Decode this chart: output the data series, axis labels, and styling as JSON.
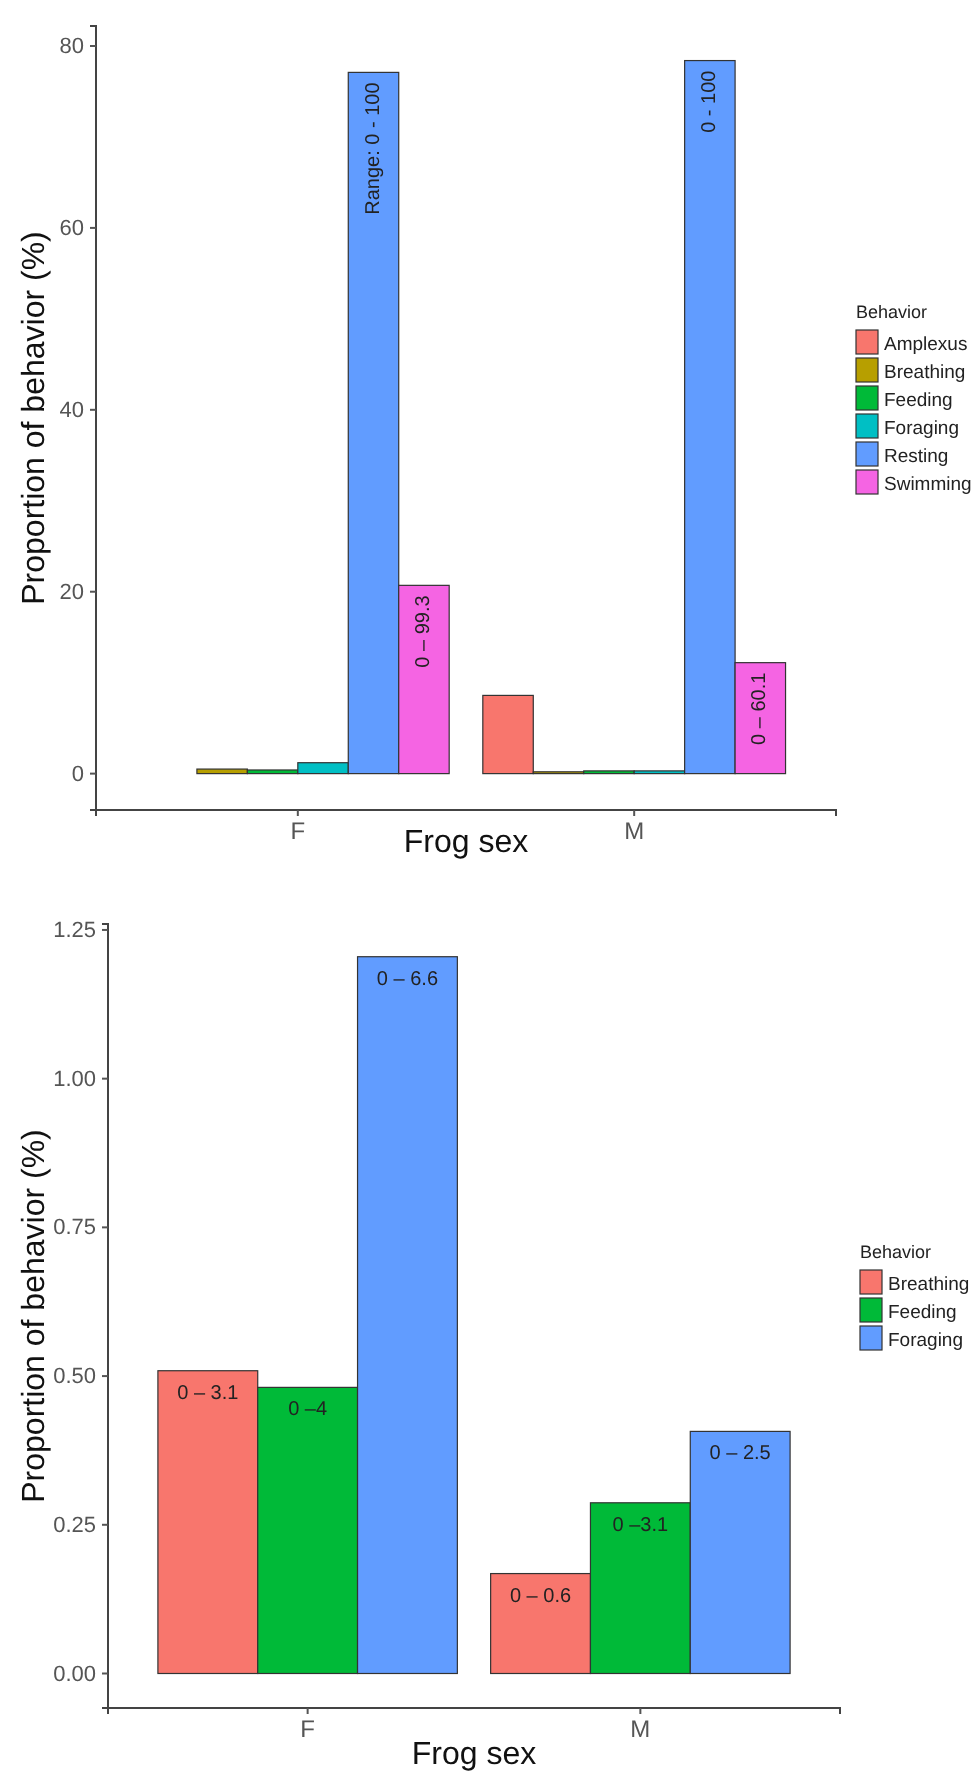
{
  "chart_data": [
    {
      "type": "bar",
      "xlabel": "Frog sex",
      "ylabel": "Proportion of behavior (%)",
      "legend_title": "Behavior",
      "legend": "right",
      "annotations": [
        "Range: 0 - 100",
        "0 – 99.3",
        "0 - 100",
        "0 – 60.1"
      ],
      "categories": [
        "F",
        "M"
      ],
      "ylim": [
        -4,
        82.2
      ],
      "yticks": [
        0,
        20,
        40,
        60,
        80
      ],
      "series": [
        {
          "name": "Amplexus",
          "color": "#f8766d",
          "values": [
            0,
            8.6
          ]
        },
        {
          "name": "Breathing",
          "color": "#b79f00",
          "values": [
            0.5,
            0.2
          ]
        },
        {
          "name": "Feeding",
          "color": "#00ba38",
          "values": [
            0.4,
            0.3
          ]
        },
        {
          "name": "Foraging",
          "color": "#00bfc4",
          "values": [
            1.2,
            0.3
          ]
        },
        {
          "name": "Resting",
          "color": "#619cff",
          "values": [
            77.1,
            78.4
          ]
        },
        {
          "name": "Swimming",
          "color": "#f564e3",
          "values": [
            20.7,
            12.2
          ]
        }
      ]
    },
    {
      "type": "bar",
      "xlabel": "Frog sex",
      "ylabel": "Proportion of behavior (%)",
      "legend_title": "Behavior",
      "legend": "right",
      "annotations": [
        "0 – 3.1",
        "0 –4",
        "0 – 6.6",
        "0 – 0.6",
        "0 –3.1",
        "0 – 2.5"
      ],
      "categories": [
        "F",
        "M"
      ],
      "ylim": [
        -0.058,
        1.26
      ],
      "yticks": [
        {
          "value": 0,
          "label": "0.00"
        },
        {
          "value": 0.25,
          "label": "0.25"
        },
        {
          "value": 0.5,
          "label": "0.50"
        },
        {
          "value": 0.75,
          "label": "0.75"
        },
        {
          "value": 1,
          "label": "1.00"
        },
        {
          "value": 1.25,
          "label": "1.25"
        }
      ],
      "series": [
        {
          "name": "Breathing",
          "color": "#f8766d",
          "values": [
            0.509,
            0.168
          ]
        },
        {
          "name": "Feeding",
          "color": "#00ba38",
          "values": [
            0.481,
            0.287
          ]
        },
        {
          "name": "Foraging",
          "color": "#619cff",
          "values": [
            1.205,
            0.407
          ]
        }
      ]
    }
  ]
}
